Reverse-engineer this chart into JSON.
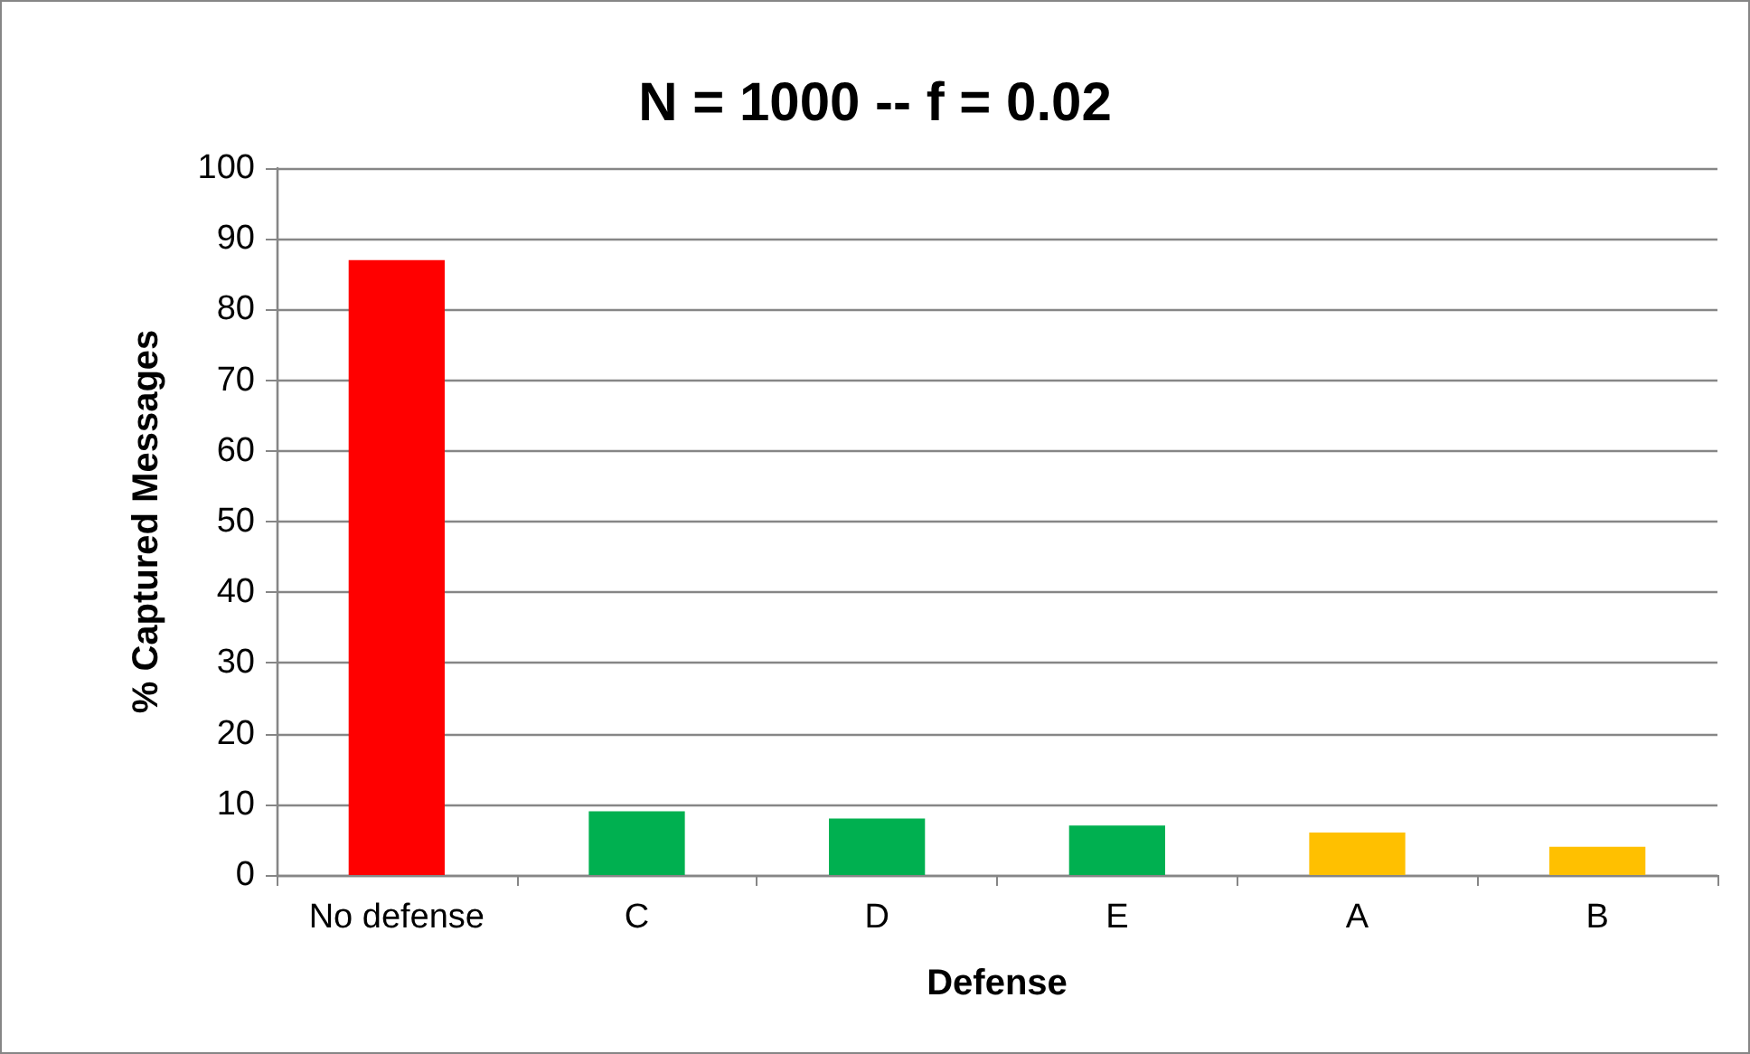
{
  "chart_data": {
    "type": "bar",
    "title": "N = 1000 -- f = 0.02",
    "xlabel": "Defense",
    "ylabel": "% Captured Messages",
    "categories": [
      "No defense",
      "C",
      "D",
      "E",
      "A",
      "B"
    ],
    "values": [
      87,
      9,
      8,
      7,
      6,
      4
    ],
    "colors": [
      "#ff0000",
      "#00b050",
      "#00b050",
      "#00b050",
      "#ffc000",
      "#ffc000"
    ],
    "ylim": [
      0,
      100
    ],
    "yticks": [
      0,
      10,
      20,
      30,
      40,
      50,
      60,
      70,
      80,
      90,
      100
    ],
    "grid": "y"
  }
}
